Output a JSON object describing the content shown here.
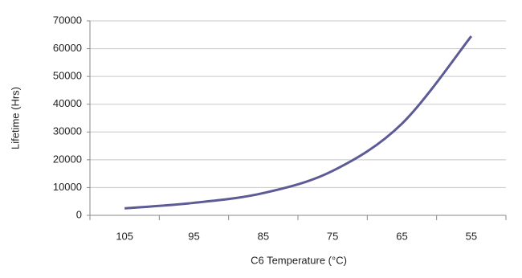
{
  "chart_data": {
    "type": "line",
    "x_label": "C6 Temperature (°C)",
    "y_label": "Lifetime (Hrs)",
    "categories": [
      "105",
      "95",
      "85",
      "75",
      "65",
      "55"
    ],
    "series": [
      {
        "name": "Lifetime",
        "color": "#5c5b96",
        "values": [
          2500,
          4500,
          8000,
          16000,
          33000,
          64500
        ]
      }
    ],
    "ylim": [
      0,
      70000
    ],
    "yticks": [
      0,
      10000,
      20000,
      30000,
      40000,
      50000,
      60000,
      70000
    ],
    "grid": true
  }
}
